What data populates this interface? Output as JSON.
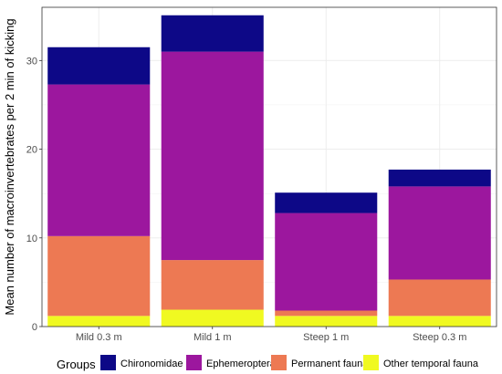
{
  "chart_data": {
    "type": "bar",
    "stacked": true,
    "title": "",
    "xlabel": "",
    "ylabel": "Mean number of macroinvertebrates per 2 min of kicking",
    "ylim": [
      0,
      36
    ],
    "yticks": [
      0,
      10,
      20,
      30
    ],
    "grid": true,
    "legend_position": "bottom",
    "legend_title": "Groups",
    "categories": [
      "Mild 0.3 m",
      "Mild 1 m",
      "Steep 1 m",
      "Steep 0.3 m"
    ],
    "series": [
      {
        "name": "Other temporal fauna",
        "color": "#f0f921",
        "values": [
          1.2,
          1.9,
          1.2,
          1.2
        ]
      },
      {
        "name": "Permanent fauna",
        "color": "#ed7953",
        "values": [
          9.0,
          5.6,
          0.6,
          4.1
        ]
      },
      {
        "name": "Ephemeroptera",
        "color": "#9c179e",
        "values": [
          17.1,
          23.5,
          11.0,
          10.5
        ]
      },
      {
        "name": "Chironomidae",
        "color": "#0d0887",
        "values": [
          4.2,
          4.1,
          2.3,
          1.9
        ]
      }
    ],
    "legend_order": [
      "Chironomidae",
      "Ephemeroptera",
      "Permanent fauna",
      "Other temporal fauna"
    ]
  }
}
